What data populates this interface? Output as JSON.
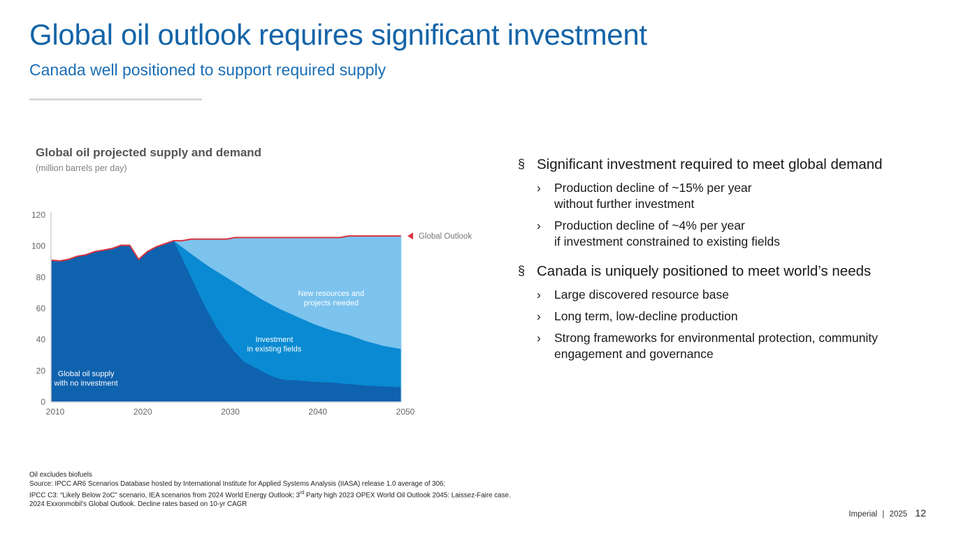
{
  "slide": {
    "title": "Global oil outlook requires significant investment",
    "subtitle": "Canada well positioned to support required supply"
  },
  "chart_data": {
    "type": "area",
    "title": "Global oil projected supply and demand",
    "subtitle": "(million barrels per day)",
    "xlim": [
      2010,
      2050
    ],
    "ylim": [
      0,
      120
    ],
    "x_ticks": [
      2010,
      2020,
      2030,
      2040,
      2050
    ],
    "y_ticks": [
      0,
      20,
      40,
      60,
      80,
      100,
      120
    ],
    "grid": false,
    "colors": {
      "demand_line": "#d9333f",
      "new_resources": "#7cc3ee",
      "investment": "#0a8ad2",
      "no_investment": "#0f62ae",
      "axis": "#cfcfcf"
    },
    "demand": {
      "name": "Global Outlook",
      "x": [
        2010,
        2011,
        2012,
        2013,
        2014,
        2015,
        2016,
        2017,
        2018,
        2019,
        2020,
        2021,
        2022,
        2023,
        2024,
        2025,
        2026,
        2030,
        2031,
        2040,
        2043,
        2044,
        2050
      ],
      "y": [
        91,
        90.5,
        91.5,
        93.5,
        94.5,
        96.5,
        97.5,
        98.5,
        100.5,
        100.5,
        91.5,
        96.5,
        99.5,
        101.5,
        103.5,
        103.5,
        104.5,
        104.5,
        105.5,
        105.5,
        105.5,
        106.5,
        106.5
      ]
    },
    "investment_in_existing_fields": {
      "x": [
        2024,
        2026,
        2028,
        2030,
        2032,
        2034,
        2036,
        2038,
        2040,
        2042,
        2044,
        2046,
        2048,
        2050
      ],
      "y": [
        103.5,
        95,
        87,
        80,
        73,
        66,
        60,
        55,
        50,
        46,
        43,
        39,
        36,
        34
      ]
    },
    "supply_no_investment": {
      "x": [
        2010,
        2011,
        2012,
        2013,
        2014,
        2015,
        2016,
        2017,
        2018,
        2019,
        2020,
        2021,
        2022,
        2023,
        2024,
        2025,
        2026,
        2027,
        2028,
        2029,
        2030,
        2031,
        2032,
        2033,
        2034,
        2035,
        2036,
        2037,
        2038,
        2040,
        2042,
        2044,
        2046,
        2048,
        2050
      ],
      "y": [
        91,
        90.5,
        91.5,
        93.5,
        94.5,
        96.5,
        97.5,
        98.5,
        100.5,
        100.5,
        91.5,
        96.5,
        99.5,
        101.5,
        103.5,
        92,
        80,
        68,
        57,
        47,
        39,
        32,
        26,
        23,
        20,
        17,
        15,
        14,
        14,
        13,
        12.5,
        11.5,
        10.5,
        10,
        9.5
      ]
    },
    "annotations": {
      "global_outlook": "Global Outlook",
      "new_resources_1": "New resources and",
      "new_resources_2": "projects needed",
      "investment_1": "Investment",
      "investment_2": "in existing fields",
      "no_investment_1": "Global oil supply",
      "no_investment_2": "with no investment"
    }
  },
  "bullets": {
    "b1": "Significant investment required to meet global demand",
    "b1a_line1": "Production decline of ~15% per year",
    "b1a_line2": "without further investment",
    "b1b_line1": "Production decline of ~4% per year",
    "b1b_line2": "if investment constrained to existing fields",
    "b2": "Canada is uniquely positioned to meet world’s needs",
    "b2a": "Large discovered resource base",
    "b2b": "Long term, low-decline production",
    "b2c_line1": "Strong frameworks for environmental protection, community",
    "b2c_line2": "engagement and governance",
    "marker_main": "§",
    "marker_sub": "›"
  },
  "footnotes": {
    "line1": "Oil excludes biofuels",
    "line2": "Source: IPCC AR6 Scenarios Database hosted by International Institute for Applied Systems Analysis (IIASA) release 1.0 average of 306;",
    "line3_a": "IPCC C3: “Likely Below 2oC” scenario, IEA scenarios from 2024 World Energy Outlook; 3",
    "line3_sup": "rd",
    "line3_b": " Party high 2023 OPEX World Oil Outlook 2045: Laissez-Faire case.",
    "line4": "2024 Exxonmobil’s Global Outlook. Decline rates based on 10-yr CAGR"
  },
  "footer": {
    "company": "Imperial",
    "separator": "|",
    "year": "2025",
    "page": "12"
  }
}
